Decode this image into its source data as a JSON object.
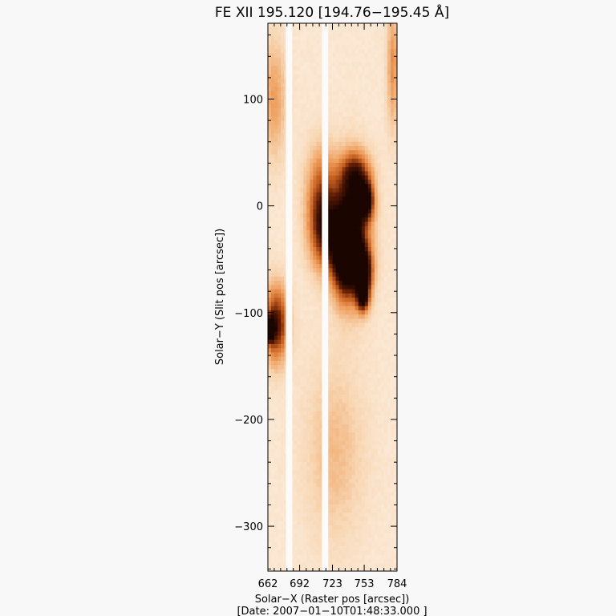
{
  "chart_data": {
    "type": "heatmap",
    "title": "FE XII 195.120 [194.76−195.45 Å]",
    "xlabel": "Solar−X (Raster pos [arcsec])",
    "ylabel": "Solar−Y (Slit pos [arcsec])",
    "date_label": "[Date: 2007−01−10T01:48:33.000 ]",
    "xlim": [
      662,
      784
    ],
    "ylim": [
      -342,
      171
    ],
    "x_ticks": [
      {
        "value": 662,
        "label": "662"
      },
      {
        "value": 692,
        "label": "692"
      },
      {
        "value": 723,
        "label": "723"
      },
      {
        "value": 753,
        "label": "753"
      },
      {
        "value": 784,
        "label": "784"
      }
    ],
    "y_ticks": [
      {
        "value": 100,
        "label": "100"
      },
      {
        "value": 0,
        "label": "0"
      },
      {
        "value": -100,
        "label": "−100"
      },
      {
        "value": -200,
        "label": "−200"
      },
      {
        "value": -300,
        "label": "−300"
      }
    ],
    "colormap": [
      "#fdf6ee",
      "#f8d7b4",
      "#ef9f5e",
      "#c55e1f",
      "#5a1a05",
      "#1a0500"
    ],
    "data_gaps_x": [
      [
        679,
        685
      ],
      [
        713,
        719
      ]
    ],
    "bright_regions": [
      {
        "x": 740,
        "y": -25,
        "sx": 12,
        "sy": 40,
        "intensity": 0.95
      },
      {
        "x": 735,
        "y": -45,
        "sx": 8,
        "sy": 25,
        "intensity": 0.8
      },
      {
        "x": 752,
        "y": -60,
        "sx": 6,
        "sy": 15,
        "intensity": 0.9
      },
      {
        "x": 755,
        "y": 5,
        "sx": 5,
        "sy": 12,
        "intensity": 0.85
      },
      {
        "x": 745,
        "y": 30,
        "sx": 10,
        "sy": 15,
        "intensity": 0.55
      },
      {
        "x": 752,
        "y": -85,
        "sx": 4,
        "sy": 10,
        "intensity": 0.8
      },
      {
        "x": 715,
        "y": -25,
        "sx": 10,
        "sy": 25,
        "intensity": 0.6
      },
      {
        "x": 712,
        "y": 15,
        "sx": 10,
        "sy": 30,
        "intensity": 0.45
      },
      {
        "x": 670,
        "y": -110,
        "sx": 8,
        "sy": 25,
        "intensity": 0.75
      },
      {
        "x": 664,
        "y": -115,
        "sx": 3,
        "sy": 8,
        "intensity": 0.8
      },
      {
        "x": 668,
        "y": 100,
        "sx": 8,
        "sy": 40,
        "intensity": 0.3
      },
      {
        "x": 780,
        "y": 130,
        "sx": 4,
        "sy": 40,
        "intensity": 0.35
      },
      {
        "x": 725,
        "y": -230,
        "sx": 20,
        "sy": 60,
        "intensity": 0.2
      }
    ]
  }
}
